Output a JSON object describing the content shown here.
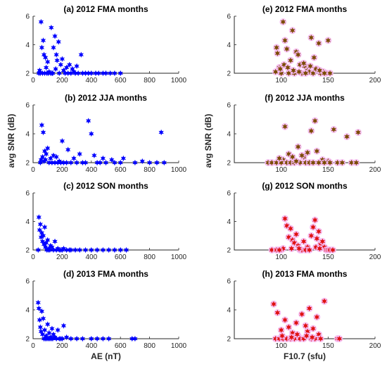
{
  "figure": {
    "ylabel_left": "avg SNR (dB)",
    "ylabel_right": "avg SNR (dB)",
    "xlabel_left": "AE (nT)",
    "xlabel_right": "F10.7 (sfu)",
    "colors": {
      "ae_marker": "#0000ff",
      "f107_marker": "#7a4a00",
      "f107_glow": "#f4b6f0",
      "f107_marker_bottom": "#e01010"
    }
  },
  "chart_data": [
    {
      "id": "a",
      "type": "scatter",
      "title": "(a) 2012 FMA months",
      "xlim": [
        0,
        1000
      ],
      "ylim": [
        2,
        6
      ],
      "xticks": [
        0,
        200,
        400,
        600,
        800,
        1000
      ],
      "yticks": [
        2,
        4,
        6
      ],
      "xlabel": "",
      "ylabel": "",
      "marker": "star",
      "color": "#0000ff",
      "x": [
        55,
        60,
        70,
        75,
        85,
        90,
        100,
        110,
        125,
        140,
        150,
        160,
        165,
        175,
        190,
        200,
        210,
        230,
        250,
        270,
        280,
        300,
        330,
        40,
        50,
        65,
        80,
        95,
        105,
        120,
        135,
        180,
        220,
        240,
        260,
        290,
        310,
        340,
        360,
        380,
        400,
        430,
        450,
        480,
        500,
        530,
        560,
        600,
        45,
        130,
        155
      ],
      "y": [
        5.6,
        3.8,
        4.3,
        3.3,
        3.1,
        2.4,
        2.8,
        2.1,
        5.2,
        3.8,
        4.6,
        3.3,
        2.9,
        4.2,
        2.6,
        3.0,
        2.2,
        2.4,
        2.6,
        2.3,
        2.1,
        2.5,
        3.3,
        2.0,
        2.0,
        2.0,
        2.0,
        2.0,
        2.0,
        2.0,
        2.0,
        2.0,
        2.0,
        2.0,
        2.0,
        2.0,
        2.0,
        2.0,
        2.0,
        2.0,
        2.0,
        2.0,
        2.0,
        2.0,
        2.0,
        2.0,
        2.0,
        2.0,
        2.2,
        2.0,
        2.3
      ]
    },
    {
      "id": "e",
      "type": "scatter",
      "title": "(e) 2012 FMA months",
      "xlim": [
        50,
        200
      ],
      "ylim": [
        2,
        6
      ],
      "xticks": [
        100,
        150,
        200
      ],
      "yticks": [
        2,
        4,
        6
      ],
      "xlabel": "",
      "ylabel": "",
      "marker": "star",
      "color": "#7a4a00",
      "x": [
        102,
        95,
        96,
        98,
        104,
        106,
        110,
        112,
        116,
        118,
        120,
        125,
        128,
        130,
        132,
        135,
        138,
        140,
        145,
        150,
        100,
        108,
        114,
        122,
        126,
        134,
        142,
        148,
        152,
        94,
        99,
        103,
        107,
        113,
        119,
        124,
        131,
        137,
        141,
        146
      ],
      "y": [
        5.6,
        3.8,
        3.4,
        2.4,
        4.3,
        3.7,
        2.9,
        5.0,
        3.5,
        3.3,
        2.6,
        2.5,
        2.2,
        2.1,
        4.5,
        3.1,
        2.3,
        4.1,
        2.1,
        4.3,
        2.0,
        2.0,
        2.0,
        2.0,
        2.0,
        2.0,
        2.0,
        2.0,
        2.0,
        2.1,
        2.3,
        2.6,
        2.4,
        2.2,
        2.1,
        2.7,
        2.5,
        2.3,
        2.2,
        2.0
      ]
    },
    {
      "id": "b",
      "type": "scatter",
      "title": "(b) 2012 JJA months",
      "xlim": [
        0,
        1000
      ],
      "ylim": [
        2,
        6
      ],
      "xticks": [
        0,
        200,
        400,
        600,
        800,
        1000
      ],
      "yticks": [
        2,
        4,
        6
      ],
      "xlabel": "",
      "ylabel": "",
      "marker": "star",
      "color": "#0000ff",
      "x": [
        60,
        70,
        80,
        90,
        100,
        120,
        140,
        160,
        180,
        200,
        240,
        280,
        320,
        380,
        400,
        420,
        480,
        540,
        620,
        750,
        880,
        900,
        50,
        110,
        130,
        150,
        170,
        190,
        210,
        230,
        260,
        300,
        340,
        360,
        440,
        460,
        500,
        560,
        600,
        700,
        800,
        850,
        55,
        65,
        75,
        85
      ],
      "y": [
        4.6,
        4.1,
        2.8,
        2.6,
        3.0,
        2.3,
        2.5,
        2.4,
        2.1,
        3.5,
        2.9,
        2.3,
        2.6,
        4.9,
        4.0,
        2.5,
        2.3,
        2.2,
        2.3,
        2.1,
        4.1,
        2.0,
        2.0,
        2.0,
        2.0,
        2.0,
        2.0,
        2.0,
        2.0,
        2.0,
        2.0,
        2.0,
        2.0,
        2.0,
        2.0,
        2.0,
        2.0,
        2.0,
        2.0,
        2.0,
        2.0,
        2.0,
        2.2,
        2.4,
        2.1,
        2.2
      ]
    },
    {
      "id": "f",
      "type": "scatter",
      "title": "(f) 2012 JJA months",
      "xlim": [
        50,
        200
      ],
      "ylim": [
        2,
        6
      ],
      "xticks": [
        100,
        150,
        200
      ],
      "yticks": [
        2,
        4,
        6
      ],
      "xlabel": "",
      "ylabel": "",
      "marker": "star",
      "color": "#7a4a00",
      "x": [
        102,
        104,
        108,
        112,
        118,
        124,
        128,
        132,
        136,
        138,
        144,
        150,
        156,
        170,
        182,
        86,
        90,
        95,
        100,
        106,
        110,
        114,
        120,
        126,
        130,
        134,
        140,
        146,
        152,
        160,
        165,
        175,
        180,
        98,
        116,
        122
      ],
      "y": [
        2.2,
        4.5,
        2.6,
        2.4,
        3.1,
        2.4,
        2.7,
        4.2,
        4.9,
        2.8,
        2.2,
        2.1,
        4.3,
        3.8,
        4.1,
        2.0,
        2.0,
        2.0,
        2.0,
        2.0,
        2.0,
        2.0,
        2.0,
        2.0,
        2.0,
        2.0,
        2.0,
        2.0,
        2.0,
        2.0,
        2.0,
        2.0,
        2.0,
        2.3,
        2.1,
        2.5
      ]
    },
    {
      "id": "c",
      "type": "scatter",
      "title": "(c) 2012 SON months",
      "xlim": [
        0,
        1000
      ],
      "ylim": [
        2,
        6
      ],
      "xticks": [
        0,
        200,
        400,
        600,
        800,
        1000
      ],
      "yticks": [
        2,
        4,
        6
      ],
      "xlabel": "",
      "ylabel": "",
      "marker": "star",
      "color": "#0000ff",
      "x": [
        40,
        45,
        50,
        55,
        60,
        65,
        70,
        75,
        80,
        85,
        90,
        100,
        110,
        120,
        130,
        150,
        170,
        190,
        210,
        230,
        260,
        290,
        320,
        360,
        400,
        440,
        480,
        520,
        560,
        600,
        640,
        35,
        95,
        105,
        115,
        140,
        160,
        180,
        200,
        250
      ],
      "y": [
        4.3,
        3.4,
        3.8,
        2.9,
        3.2,
        2.6,
        3.0,
        2.4,
        3.6,
        2.2,
        2.5,
        2.7,
        2.1,
        2.3,
        2.2,
        2.6,
        2.1,
        2.0,
        2.1,
        2.0,
        2.0,
        2.0,
        2.0,
        2.0,
        2.0,
        2.0,
        2.0,
        2.0,
        2.0,
        2.0,
        2.0,
        2.0,
        2.0,
        2.0,
        2.0,
        2.0,
        2.0,
        2.0,
        2.0,
        2.0
      ]
    },
    {
      "id": "g",
      "type": "scatter",
      "title": "(g) 2012 SON months",
      "xlim": [
        50,
        200
      ],
      "ylim": [
        2,
        6
      ],
      "xticks": [
        100,
        150,
        200
      ],
      "yticks": [
        2,
        4,
        6
      ],
      "xlabel": "",
      "ylabel": "",
      "marker": "star",
      "color": "#e01010",
      "x": [
        104,
        106,
        108,
        110,
        112,
        114,
        116,
        118,
        124,
        128,
        132,
        134,
        136,
        138,
        140,
        142,
        144,
        146,
        90,
        95,
        100,
        102,
        120,
        122,
        126,
        130,
        148,
        150,
        152,
        155,
        98,
        111,
        119,
        137,
        141
      ],
      "y": [
        4.2,
        3.7,
        2.9,
        3.5,
        2.7,
        2.5,
        3.1,
        2.3,
        2.6,
        2.2,
        3.0,
        3.6,
        4.1,
        2.8,
        3.3,
        2.4,
        2.6,
        2.2,
        2.0,
        2.0,
        2.0,
        2.1,
        2.0,
        2.0,
        2.0,
        2.0,
        2.0,
        2.0,
        2.0,
        2.0,
        2.0,
        2.1,
        2.1,
        2.2,
        2.1
      ]
    },
    {
      "id": "d",
      "type": "scatter",
      "title": "(d) 2013 FMA months",
      "xlim": [
        0,
        1000
      ],
      "ylim": [
        2,
        6
      ],
      "xticks": [
        0,
        200,
        400,
        600,
        800,
        1000
      ],
      "yticks": [
        2,
        4,
        6
      ],
      "xlabel": "AE (nT)",
      "ylabel": "",
      "marker": "star",
      "color": "#0000ff",
      "x": [
        35,
        40,
        45,
        50,
        55,
        60,
        65,
        70,
        80,
        90,
        100,
        110,
        120,
        130,
        140,
        150,
        170,
        190,
        210,
        230,
        260,
        300,
        340,
        400,
        440,
        480,
        520,
        680,
        700,
        75,
        85,
        95,
        105,
        115,
        125,
        135,
        160,
        180,
        200
      ],
      "y": [
        4.5,
        4.1,
        3.3,
        2.8,
        2.5,
        3.9,
        2.3,
        3.4,
        2.6,
        2.2,
        3.0,
        2.4,
        2.1,
        2.7,
        2.3,
        2.1,
        2.6,
        2.0,
        2.9,
        2.1,
        2.0,
        2.0,
        2.0,
        2.0,
        2.0,
        2.0,
        2.0,
        2.0,
        2.0,
        2.0,
        2.0,
        2.0,
        2.0,
        2.0,
        2.0,
        2.0,
        2.0,
        2.0,
        2.0
      ]
    },
    {
      "id": "h",
      "type": "scatter",
      "title": "(h) 2013 FMA months",
      "xlim": [
        50,
        200
      ],
      "ylim": [
        2,
        6
      ],
      "xticks": [
        100,
        150,
        200
      ],
      "yticks": [
        2,
        4,
        6
      ],
      "xlabel": "F10.7 (sfu)",
      "ylabel": "",
      "marker": "star",
      "color": "#e01010",
      "x": [
        92,
        96,
        100,
        104,
        108,
        112,
        116,
        118,
        122,
        126,
        128,
        130,
        134,
        138,
        140,
        146,
        94,
        98,
        102,
        106,
        110,
        114,
        120,
        124,
        132,
        136,
        142,
        160,
        162,
        101,
        111,
        117,
        127,
        133
      ],
      "y": [
        4.4,
        3.8,
        2.6,
        3.3,
        2.8,
        2.4,
        3.1,
        2.2,
        3.7,
        2.9,
        2.5,
        4.1,
        2.7,
        3.5,
        2.3,
        4.6,
        2.0,
        2.0,
        2.0,
        2.0,
        2.0,
        2.0,
        2.0,
        2.0,
        2.0,
        2.0,
        2.0,
        2.0,
        2.0,
        2.2,
        2.1,
        2.3,
        2.2,
        2.1
      ]
    }
  ]
}
